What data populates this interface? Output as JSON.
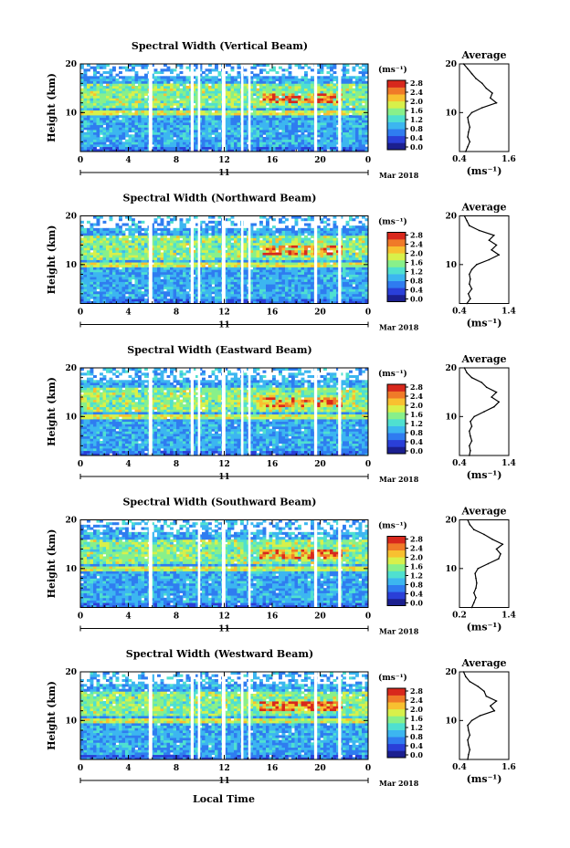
{
  "colorbar": {
    "unit": "(ms⁻¹)",
    "ticks": [
      "2.8",
      "2.4",
      "2.0",
      "1.6",
      "1.2",
      "0.8",
      "0.4",
      "0.0"
    ],
    "colors": [
      "#1b1f8f",
      "#2a3fd8",
      "#2f7cf0",
      "#3cb6f0",
      "#4fe0d0",
      "#88f08a",
      "#d8f04a",
      "#f8c030",
      "#f07a28",
      "#d8281c"
    ]
  },
  "x_axis": {
    "ticks": [
      "0",
      "4",
      "8",
      "12",
      "16",
      "20",
      "0"
    ],
    "day": "11",
    "month_year": "Mar 2018",
    "label": "Local Time"
  },
  "y_axis": {
    "label": "Height (km)",
    "ticks": [
      "20",
      "10"
    ]
  },
  "chart_data": [
    {
      "type": "heatmap",
      "title": "Spectral Width (Vertical Beam)",
      "ylabel": "Height (km)",
      "ylim": [
        2,
        20
      ],
      "xlim": [
        0,
        24
      ],
      "gaps_hours": [
        [
          5.7,
          6.0
        ],
        [
          9.2,
          9.45
        ],
        [
          9.8,
          10.0
        ],
        [
          11.8,
          12.1
        ],
        [
          13.4,
          13.6
        ],
        [
          14.0,
          14.2
        ],
        [
          19.5,
          19.75
        ],
        [
          21.5,
          21.75
        ]
      ],
      "average_profile": {
        "title": "Average",
        "xlabel": "(ms⁻¹)",
        "xticks": [
          "0.4",
          "1.6"
        ],
        "xlim": [
          0.4,
          1.6
        ],
        "yticks": [
          "20",
          "10"
        ],
        "height_km": [
          2,
          3,
          4,
          5,
          6,
          7,
          8,
          9,
          10,
          11,
          12,
          13,
          14,
          15,
          16,
          17,
          18,
          19,
          20
        ],
        "width_ms": [
          0.55,
          0.6,
          0.65,
          0.6,
          0.62,
          0.65,
          0.62,
          0.6,
          0.7,
          0.95,
          1.3,
          1.15,
          1.2,
          1.05,
          0.95,
          0.8,
          0.7,
          0.6,
          0.5
        ]
      }
    },
    {
      "type": "heatmap",
      "title": "Spectral Width (Northward Beam)",
      "ylabel": "Height (km)",
      "ylim": [
        2,
        20
      ],
      "xlim": [
        0,
        24
      ],
      "gaps_hours": [
        [
          5.7,
          6.0
        ],
        [
          9.2,
          9.45
        ],
        [
          9.8,
          10.0
        ],
        [
          11.8,
          12.1
        ],
        [
          13.4,
          13.6
        ],
        [
          14.0,
          14.2
        ],
        [
          19.5,
          19.75
        ],
        [
          21.5,
          21.75
        ]
      ],
      "average_profile": {
        "title": "Average",
        "xlabel": "(ms⁻¹)",
        "xticks": [
          "0.4",
          "1.4"
        ],
        "xlim": [
          0.4,
          1.4
        ],
        "yticks": [
          "20",
          "10"
        ],
        "height_km": [
          2,
          3,
          4,
          5,
          6,
          7,
          8,
          9,
          10,
          11,
          12,
          13,
          14,
          15,
          16,
          17,
          18,
          19,
          20
        ],
        "width_ms": [
          0.55,
          0.62,
          0.58,
          0.65,
          0.6,
          0.62,
          0.6,
          0.65,
          0.75,
          1.0,
          1.2,
          1.05,
          1.15,
          1.0,
          1.1,
          0.8,
          0.6,
          0.55,
          0.5
        ]
      }
    },
    {
      "type": "heatmap",
      "title": "Spectral Width (Eastward Beam)",
      "ylabel": "Height (km)",
      "ylim": [
        2,
        20
      ],
      "xlim": [
        0,
        24
      ],
      "gaps_hours": [
        [
          5.7,
          6.0
        ],
        [
          9.2,
          9.45
        ],
        [
          9.8,
          10.0
        ],
        [
          11.8,
          12.1
        ],
        [
          13.4,
          13.6
        ],
        [
          14.0,
          14.2
        ],
        [
          19.5,
          19.75
        ],
        [
          21.5,
          21.75
        ]
      ],
      "average_profile": {
        "title": "Average",
        "xlabel": "(ms⁻¹)",
        "xticks": [
          "0.4",
          "1.4"
        ],
        "xlim": [
          0.4,
          1.4
        ],
        "yticks": [
          "20",
          "10"
        ],
        "height_km": [
          2,
          3,
          4,
          5,
          6,
          7,
          8,
          9,
          10,
          11,
          12,
          13,
          14,
          15,
          16,
          17,
          18,
          19,
          20
        ],
        "width_ms": [
          0.6,
          0.62,
          0.6,
          0.65,
          0.62,
          0.6,
          0.65,
          0.62,
          0.7,
          0.9,
          1.1,
          1.2,
          1.05,
          1.15,
          0.95,
          0.85,
          0.65,
          0.55,
          0.5
        ]
      }
    },
    {
      "type": "heatmap",
      "title": "Spectral Width (Southward Beam)",
      "ylabel": "Height (km)",
      "ylim": [
        2,
        20
      ],
      "xlim": [
        0,
        24
      ],
      "gaps_hours": [
        [
          5.7,
          6.0
        ],
        [
          9.8,
          10.0
        ],
        [
          11.8,
          12.1
        ],
        [
          14.0,
          14.2
        ],
        [
          19.5,
          19.75
        ],
        [
          21.5,
          21.75
        ]
      ],
      "average_profile": {
        "title": "Average",
        "xlabel": "(ms⁻¹)",
        "xticks": [
          "0.2",
          "1.4"
        ],
        "xlim": [
          0.2,
          1.4
        ],
        "yticks": [
          "20",
          "10"
        ],
        "height_km": [
          2,
          3,
          4,
          5,
          6,
          7,
          8,
          9,
          10,
          11,
          12,
          13,
          14,
          15,
          16,
          17,
          18,
          19,
          20
        ],
        "width_ms": [
          0.5,
          0.55,
          0.6,
          0.55,
          0.6,
          0.62,
          0.6,
          0.58,
          0.65,
          0.9,
          1.15,
          1.2,
          1.1,
          1.25,
          1.0,
          0.8,
          0.55,
          0.45,
          0.4
        ]
      }
    },
    {
      "type": "heatmap",
      "title": "Spectral Width (Westward Beam)",
      "ylabel": "Height (km)",
      "ylim": [
        2,
        20
      ],
      "xlim": [
        0,
        24
      ],
      "gaps_hours": [
        [
          5.7,
          6.0
        ],
        [
          9.2,
          9.45
        ],
        [
          9.8,
          10.0
        ],
        [
          11.8,
          12.1
        ],
        [
          13.4,
          13.6
        ],
        [
          14.0,
          14.2
        ],
        [
          19.5,
          19.75
        ],
        [
          21.5,
          21.75
        ]
      ],
      "average_profile": {
        "title": "Average",
        "xlabel": "(ms⁻¹)",
        "xticks": [
          "0.4",
          "1.6"
        ],
        "xlim": [
          0.4,
          1.6
        ],
        "yticks": [
          "20",
          "10"
        ],
        "height_km": [
          2,
          3,
          4,
          5,
          6,
          7,
          8,
          9,
          10,
          11,
          12,
          13,
          14,
          15,
          16,
          17,
          18,
          19,
          20
        ],
        "width_ms": [
          0.6,
          0.62,
          0.65,
          0.62,
          0.6,
          0.65,
          0.62,
          0.6,
          0.7,
          0.9,
          1.25,
          1.15,
          1.3,
          1.05,
          1.0,
          0.85,
          0.65,
          0.55,
          0.5
        ]
      }
    }
  ]
}
